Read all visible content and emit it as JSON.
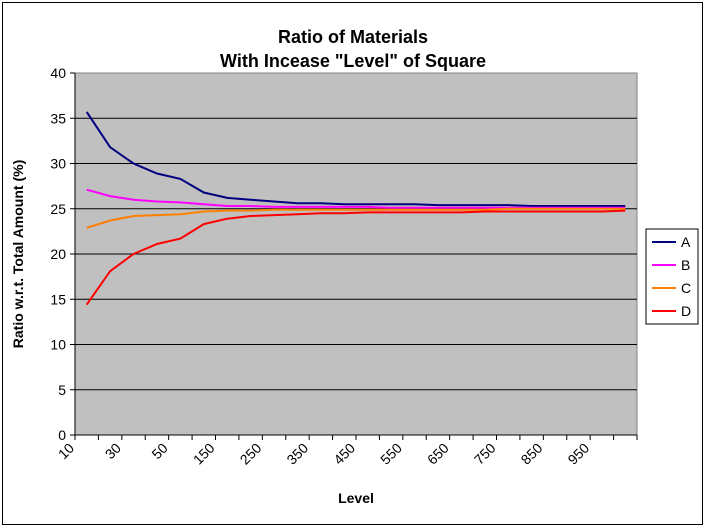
{
  "chart_data": {
    "type": "line",
    "title_lines": [
      "Ratio of Materials",
      "With Incease \"Level\" of Square"
    ],
    "xlabel": "Level",
    "ylabel": "Ratio w.r.t. Total Amount (%)",
    "ylim": [
      0,
      40
    ],
    "y_ticks": [
      0,
      5,
      10,
      15,
      20,
      25,
      30,
      35,
      40
    ],
    "x_tick_labels": [
      "10",
      "30",
      "50",
      "150",
      "250",
      "350",
      "450",
      "550",
      "650",
      "750",
      "850",
      "950"
    ],
    "categories": [
      "10",
      "20",
      "30",
      "40",
      "50",
      "100",
      "150",
      "200",
      "250",
      "300",
      "350",
      "400",
      "450",
      "500",
      "550",
      "600",
      "650",
      "700",
      "750",
      "800",
      "850",
      "900",
      "950",
      "1000"
    ],
    "grid": true,
    "legend_position": "right",
    "plot_background": "#c0c0c0",
    "series": [
      {
        "name": "A",
        "color": "#000080",
        "values": [
          35.7,
          31.8,
          30.0,
          28.9,
          28.3,
          26.8,
          26.2,
          26.0,
          25.8,
          25.6,
          25.6,
          25.5,
          25.5,
          25.5,
          25.5,
          25.4,
          25.4,
          25.4,
          25.4,
          25.3,
          25.3,
          25.3,
          25.3,
          25.3
        ]
      },
      {
        "name": "B",
        "color": "#ff00ff",
        "values": [
          27.1,
          26.4,
          26.0,
          25.8,
          25.7,
          25.5,
          25.3,
          25.3,
          25.2,
          25.2,
          25.2,
          25.2,
          25.2,
          25.1,
          25.1,
          25.1,
          25.1,
          25.1,
          25.1,
          25.1,
          25.1,
          25.1,
          25.1,
          25.1
        ]
      },
      {
        "name": "C",
        "color": "#ff8000",
        "values": [
          22.9,
          23.7,
          24.2,
          24.3,
          24.4,
          24.7,
          24.8,
          24.8,
          24.9,
          24.9,
          24.9,
          24.9,
          24.9,
          24.9,
          24.9,
          24.9,
          24.9,
          24.9,
          25.0,
          25.0,
          25.0,
          25.0,
          25.0,
          25.0
        ]
      },
      {
        "name": "D",
        "color": "#ff0000",
        "values": [
          14.4,
          18.1,
          20.0,
          21.1,
          21.7,
          23.3,
          23.9,
          24.2,
          24.3,
          24.4,
          24.5,
          24.5,
          24.6,
          24.6,
          24.6,
          24.6,
          24.6,
          24.7,
          24.7,
          24.7,
          24.7,
          24.7,
          24.7,
          24.8
        ]
      }
    ]
  }
}
